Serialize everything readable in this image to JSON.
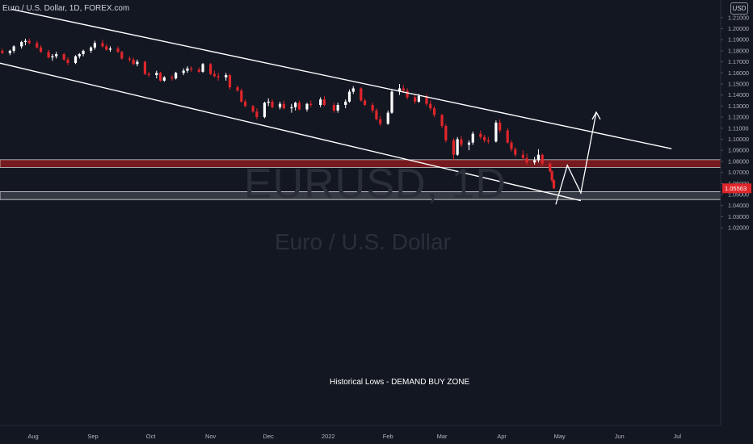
{
  "header": {
    "title": "Euro / U.S. Dollar, 1D, FOREX.com",
    "currency_badge": "USD"
  },
  "watermark": {
    "symbol": "EURUSD, 1D",
    "name": "Euro / U.S. Dollar"
  },
  "colors": {
    "background": "#131722",
    "up": "#ffffff",
    "down": "#e0262b",
    "supply_zone": "#7a1a1f",
    "demand_zone": "#3a3d47",
    "axis_text": "#b2b5be",
    "price_label_bg": "#e0262b"
  },
  "chart_data": {
    "type": "candlestick",
    "title": "",
    "ylabel": "",
    "xlabel": "",
    "ylim": [
      1.016,
      1.2175
    ],
    "x_ticks": [
      {
        "label": "Aug",
        "date": "2021-08-01"
      },
      {
        "label": "Sep",
        "date": "2021-09-01"
      },
      {
        "label": "Oct",
        "date": "2021-10-01"
      },
      {
        "label": "Nov",
        "date": "2021-11-01"
      },
      {
        "label": "Dec",
        "date": "2021-12-01"
      },
      {
        "label": "2022",
        "date": "2022-01-01"
      },
      {
        "label": "Feb",
        "date": "2022-02-01"
      },
      {
        "label": "Mar",
        "date": "2022-03-01"
      },
      {
        "label": "Apr",
        "date": "2022-04-01"
      },
      {
        "label": "May",
        "date": "2022-05-01"
      },
      {
        "label": "Jun",
        "date": "2022-06-01"
      },
      {
        "label": "Jul",
        "date": "2022-07-01"
      }
    ],
    "y_ticks": [
      "1.21000",
      "1.20000",
      "1.19000",
      "1.18000",
      "1.17000",
      "1.16000",
      "1.15000",
      "1.14000",
      "1.13000",
      "1.12000",
      "1.11000",
      "1.10000",
      "1.09000",
      "1.08000",
      "1.07000",
      "1.06000",
      "1.05000",
      "1.04000",
      "1.03000",
      "1.02000"
    ],
    "current_price": "1.05563",
    "close_path": [
      [
        "2021-07-01",
        1.186
      ],
      [
        "2021-07-06",
        1.182
      ],
      [
        "2021-07-13",
        1.178
      ],
      [
        "2021-07-20",
        1.181
      ],
      [
        "2021-07-27",
        1.188
      ],
      [
        "2021-07-30",
        1.187
      ],
      [
        "2021-08-05",
        1.183
      ],
      [
        "2021-08-11",
        1.173
      ],
      [
        "2021-08-16",
        1.177
      ],
      [
        "2021-08-20",
        1.17
      ],
      [
        "2021-08-25",
        1.175
      ],
      [
        "2021-08-31",
        1.181
      ],
      [
        "2021-09-03",
        1.188
      ],
      [
        "2021-09-08",
        1.183
      ],
      [
        "2021-09-14",
        1.18
      ],
      [
        "2021-09-20",
        1.172
      ],
      [
        "2021-09-24",
        1.171
      ],
      [
        "2021-09-30",
        1.158
      ],
      [
        "2021-10-06",
        1.154
      ],
      [
        "2021-10-12",
        1.156
      ],
      [
        "2021-10-18",
        1.161
      ],
      [
        "2021-10-25",
        1.163
      ],
      [
        "2021-10-28",
        1.168
      ],
      [
        "2021-11-02",
        1.16
      ],
      [
        "2021-11-05",
        1.157
      ],
      [
        "2021-11-10",
        1.148
      ],
      [
        "2021-11-16",
        1.136
      ],
      [
        "2021-11-22",
        1.126
      ],
      [
        "2021-11-24",
        1.12
      ],
      [
        "2021-11-30",
        1.134
      ],
      [
        "2021-12-06",
        1.129
      ],
      [
        "2021-12-13",
        1.129
      ],
      [
        "2021-12-20",
        1.133
      ],
      [
        "2021-12-27",
        1.132
      ],
      [
        "2022-01-04",
        1.13
      ],
      [
        "2022-01-10",
        1.137
      ],
      [
        "2022-01-14",
        1.145
      ],
      [
        "2022-01-20",
        1.133
      ],
      [
        "2022-01-27",
        1.114
      ],
      [
        "2022-02-04",
        1.145
      ],
      [
        "2022-02-10",
        1.142
      ],
      [
        "2022-02-15",
        1.136
      ],
      [
        "2022-02-22",
        1.132
      ],
      [
        "2022-02-28",
        1.122
      ],
      [
        "2022-03-04",
        1.093
      ],
      [
        "2022-03-07",
        1.086
      ],
      [
        "2022-03-10",
        1.1
      ],
      [
        "2022-03-15",
        1.095
      ],
      [
        "2022-03-21",
        1.103
      ],
      [
        "2022-03-25",
        1.099
      ],
      [
        "2022-03-31",
        1.116
      ],
      [
        "2022-04-05",
        1.096
      ],
      [
        "2022-04-11",
        1.089
      ],
      [
        "2022-04-14",
        1.082
      ],
      [
        "2022-04-19",
        1.078
      ],
      [
        "2022-04-21",
        1.085
      ],
      [
        "2022-04-25",
        1.071
      ],
      [
        "2022-04-27",
        1.056
      ]
    ],
    "candles": [
      [
        "2021-07-02",
        1.187,
        1.189,
        1.183,
        1.185
      ],
      [
        "2021-07-05",
        1.185,
        1.187,
        1.182,
        1.183
      ],
      [
        "2021-07-06",
        1.183,
        1.185,
        1.179,
        1.181
      ],
      [
        "2021-07-08",
        1.181,
        1.184,
        1.178,
        1.182
      ],
      [
        "2021-07-12",
        1.182,
        1.184,
        1.178,
        1.179
      ],
      [
        "2021-07-14",
        1.179,
        1.182,
        1.177,
        1.18
      ],
      [
        "2021-07-16",
        1.18,
        1.182,
        1.177,
        1.178
      ],
      [
        "2021-07-20",
        1.178,
        1.181,
        1.176,
        1.18
      ],
      [
        "2021-07-22",
        1.18,
        1.185,
        1.178,
        1.184
      ],
      [
        "2021-07-26",
        1.184,
        1.189,
        1.182,
        1.188
      ],
      [
        "2021-07-28",
        1.188,
        1.191,
        1.185,
        1.189
      ],
      [
        "2021-07-30",
        1.189,
        1.191,
        1.186,
        1.187
      ],
      [
        "2021-08-03",
        1.187,
        1.189,
        1.182,
        1.183
      ],
      [
        "2021-08-05",
        1.183,
        1.185,
        1.178,
        1.179
      ],
      [
        "2021-08-09",
        1.179,
        1.181,
        1.173,
        1.174
      ],
      [
        "2021-08-11",
        1.174,
        1.177,
        1.171,
        1.175
      ],
      [
        "2021-08-13",
        1.175,
        1.179,
        1.173,
        1.177
      ],
      [
        "2021-08-17",
        1.177,
        1.178,
        1.171,
        1.172
      ],
      [
        "2021-08-19",
        1.172,
        1.174,
        1.167,
        1.169
      ],
      [
        "2021-08-23",
        1.169,
        1.176,
        1.168,
        1.175
      ],
      [
        "2021-08-25",
        1.175,
        1.178,
        1.173,
        1.177
      ],
      [
        "2021-08-27",
        1.177,
        1.181,
        1.175,
        1.18
      ],
      [
        "2021-08-31",
        1.18,
        1.184,
        1.178,
        1.183
      ],
      [
        "2021-09-02",
        1.183,
        1.189,
        1.181,
        1.187
      ],
      [
        "2021-09-06",
        1.187,
        1.19,
        1.183,
        1.184
      ],
      [
        "2021-09-08",
        1.184,
        1.186,
        1.18,
        1.181
      ],
      [
        "2021-09-10",
        1.181,
        1.184,
        1.179,
        1.182
      ],
      [
        "2021-09-14",
        1.182,
        1.184,
        1.178,
        1.179
      ],
      [
        "2021-09-16",
        1.179,
        1.18,
        1.172,
        1.173
      ],
      [
        "2021-09-20",
        1.173,
        1.175,
        1.17,
        1.172
      ],
      [
        "2021-09-22",
        1.172,
        1.174,
        1.167,
        1.168
      ],
      [
        "2021-09-24",
        1.168,
        1.172,
        1.166,
        1.17
      ],
      [
        "2021-09-28",
        1.17,
        1.171,
        1.158,
        1.159
      ],
      [
        "2021-09-30",
        1.159,
        1.161,
        1.156,
        1.158
      ],
      [
        "2021-10-04",
        1.158,
        1.162,
        1.155,
        1.16
      ],
      [
        "2021-10-06",
        1.16,
        1.161,
        1.152,
        1.153
      ],
      [
        "2021-10-08",
        1.153,
        1.157,
        1.152,
        1.156
      ],
      [
        "2021-10-12",
        1.156,
        1.158,
        1.153,
        1.155
      ],
      [
        "2021-10-14",
        1.155,
        1.161,
        1.154,
        1.16
      ],
      [
        "2021-10-18",
        1.16,
        1.164,
        1.158,
        1.162
      ],
      [
        "2021-10-20",
        1.162,
        1.166,
        1.16,
        1.164
      ],
      [
        "2021-10-22",
        1.164,
        1.166,
        1.161,
        1.163
      ],
      [
        "2021-10-26",
        1.163,
        1.165,
        1.16,
        1.161
      ],
      [
        "2021-10-28",
        1.161,
        1.169,
        1.16,
        1.168
      ],
      [
        "2021-11-01",
        1.168,
        1.169,
        1.158,
        1.159
      ],
      [
        "2021-11-03",
        1.159,
        1.162,
        1.156,
        1.157
      ],
      [
        "2021-11-05",
        1.157,
        1.16,
        1.153,
        1.156
      ],
      [
        "2021-11-09",
        1.156,
        1.16,
        1.153,
        1.158
      ],
      [
        "2021-11-11",
        1.158,
        1.159,
        1.145,
        1.147
      ],
      [
        "2021-11-15",
        1.147,
        1.149,
        1.143,
        1.144
      ],
      [
        "2021-11-17",
        1.144,
        1.146,
        1.133,
        1.134
      ],
      [
        "2021-11-19",
        1.134,
        1.136,
        1.129,
        1.13
      ],
      [
        "2021-11-23",
        1.13,
        1.131,
        1.124,
        1.125
      ],
      [
        "2021-11-25",
        1.125,
        1.128,
        1.118,
        1.12
      ],
      [
        "2021-11-29",
        1.12,
        1.134,
        1.119,
        1.133
      ],
      [
        "2021-12-01",
        1.133,
        1.137,
        1.13,
        1.134
      ],
      [
        "2021-12-03",
        1.134,
        1.136,
        1.128,
        1.129
      ],
      [
        "2021-12-07",
        1.129,
        1.134,
        1.127,
        1.132
      ],
      [
        "2021-12-09",
        1.132,
        1.135,
        1.127,
        1.128
      ],
      [
        "2021-12-13",
        1.128,
        1.132,
        1.124,
        1.129
      ],
      [
        "2021-12-15",
        1.129,
        1.134,
        1.126,
        1.133
      ],
      [
        "2021-12-17",
        1.133,
        1.135,
        1.126,
        1.127
      ],
      [
        "2021-12-21",
        1.127,
        1.133,
        1.125,
        1.132
      ],
      [
        "2021-12-23",
        1.132,
        1.135,
        1.129,
        1.131
      ],
      [
        "2021-12-28",
        1.131,
        1.138,
        1.129,
        1.136
      ],
      [
        "2021-12-30",
        1.136,
        1.139,
        1.13,
        1.131
      ],
      [
        "2022-01-04",
        1.131,
        1.133,
        1.124,
        1.126
      ],
      [
        "2022-01-06",
        1.126,
        1.133,
        1.124,
        1.131
      ],
      [
        "2022-01-10",
        1.131,
        1.136,
        1.128,
        1.134
      ],
      [
        "2022-01-12",
        1.134,
        1.145,
        1.133,
        1.143
      ],
      [
        "2022-01-14",
        1.143,
        1.148,
        1.141,
        1.146
      ],
      [
        "2022-01-18",
        1.146,
        1.147,
        1.134,
        1.135
      ],
      [
        "2022-01-20",
        1.135,
        1.137,
        1.13,
        1.131
      ],
      [
        "2022-01-24",
        1.131,
        1.133,
        1.124,
        1.126
      ],
      [
        "2022-01-26",
        1.126,
        1.128,
        1.117,
        1.118
      ],
      [
        "2022-01-28",
        1.118,
        1.121,
        1.112,
        1.114
      ],
      [
        "2022-02-01",
        1.114,
        1.126,
        1.113,
        1.124
      ],
      [
        "2022-02-03",
        1.124,
        1.145,
        1.123,
        1.143
      ],
      [
        "2022-02-07",
        1.143,
        1.15,
        1.14,
        1.146
      ],
      [
        "2022-02-09",
        1.146,
        1.149,
        1.142,
        1.144
      ],
      [
        "2022-02-11",
        1.144,
        1.146,
        1.136,
        1.138
      ],
      [
        "2022-02-15",
        1.138,
        1.14,
        1.132,
        1.134
      ],
      [
        "2022-02-17",
        1.134,
        1.141,
        1.133,
        1.139
      ],
      [
        "2022-02-21",
        1.139,
        1.141,
        1.13,
        1.132
      ],
      [
        "2022-02-23",
        1.132,
        1.135,
        1.126,
        1.128
      ],
      [
        "2022-02-25",
        1.128,
        1.13,
        1.12,
        1.122
      ],
      [
        "2022-03-01",
        1.122,
        1.123,
        1.11,
        1.112
      ],
      [
        "2022-03-03",
        1.112,
        1.114,
        1.097,
        1.099
      ],
      [
        "2022-03-07",
        1.099,
        1.101,
        1.081,
        1.086
      ],
      [
        "2022-03-09",
        1.086,
        1.102,
        1.085,
        1.1
      ],
      [
        "2022-03-11",
        1.1,
        1.103,
        1.093,
        1.095
      ],
      [
        "2022-03-15",
        1.095,
        1.099,
        1.09,
        1.097
      ],
      [
        "2022-03-17",
        1.097,
        1.107,
        1.095,
        1.105
      ],
      [
        "2022-03-21",
        1.105,
        1.108,
        1.1,
        1.102
      ],
      [
        "2022-03-23",
        1.102,
        1.104,
        1.097,
        1.099
      ],
      [
        "2022-03-25",
        1.099,
        1.102,
        1.096,
        1.098
      ],
      [
        "2022-03-29",
        1.098,
        1.117,
        1.097,
        1.115
      ],
      [
        "2022-03-31",
        1.115,
        1.118,
        1.106,
        1.108
      ],
      [
        "2022-04-04",
        1.108,
        1.11,
        1.096,
        1.097
      ],
      [
        "2022-04-06",
        1.097,
        1.099,
        1.089,
        1.091
      ],
      [
        "2022-04-08",
        1.091,
        1.093,
        1.084,
        1.086
      ],
      [
        "2022-04-12",
        1.086,
        1.09,
        1.081,
        1.083
      ],
      [
        "2022-04-14",
        1.083,
        1.087,
        1.077,
        1.079
      ],
      [
        "2022-04-18",
        1.079,
        1.084,
        1.077,
        1.081
      ],
      [
        "2022-04-20",
        1.081,
        1.091,
        1.079,
        1.086
      ],
      [
        "2022-04-22",
        1.086,
        1.087,
        1.076,
        1.078
      ],
      [
        "2022-04-26",
        1.078,
        1.079,
        1.07,
        1.071
      ],
      [
        "2022-04-27",
        1.071,
        1.072,
        1.061,
        1.063
      ],
      [
        "2022-04-28",
        1.063,
        1.064,
        1.055,
        1.0556
      ]
    ],
    "trendlines": [
      {
        "name": "channel-upper",
        "points": [
          [
            "2021-07-21",
            1.2175
          ],
          [
            "2022-06-28",
            1.0915
          ]
        ]
      },
      {
        "name": "channel-lower",
        "points": [
          [
            "2021-07-01",
            1.1745
          ],
          [
            "2022-05-12",
            1.0445
          ]
        ]
      }
    ],
    "zones": [
      {
        "name": "supply-zone",
        "y1": 1.0745,
        "y2": 1.0815
      },
      {
        "name": "demand-zone",
        "y1": 1.0455,
        "y2": 1.0525
      }
    ],
    "projection": [
      [
        "2022-04-29",
        1.041
      ],
      [
        "2022-05-05",
        1.0765
      ],
      [
        "2022-05-12",
        1.0515
      ],
      [
        "2022-05-20",
        1.1245
      ]
    ],
    "annotation": "Historical Lows - DEMAND BUY ZONE"
  }
}
